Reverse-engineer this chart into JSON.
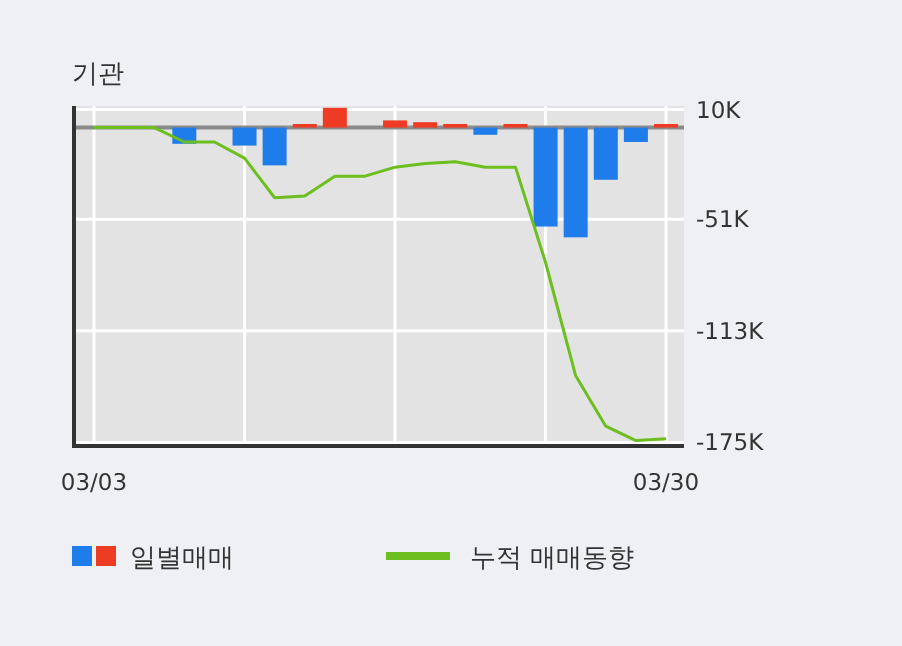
{
  "chart_data": {
    "type": "bar",
    "title": "기관",
    "categories": [
      "03/03",
      null,
      null,
      null,
      null,
      null,
      null,
      null,
      null,
      null,
      null,
      null,
      null,
      null,
      null,
      null,
      null,
      null,
      null,
      "03/30"
    ],
    "series": [
      {
        "name": "일별매매",
        "values": [
          0,
          0,
          0,
          -9,
          0,
          -10,
          -21,
          2,
          11,
          0,
          4,
          3,
          2,
          -4,
          2,
          -55,
          -61,
          -29,
          -8,
          2
        ],
        "colors": [
          "#ee3b24",
          "#ee3b24",
          "#ee3b24",
          "#1f7ceb",
          "#ee3b24",
          "#1f7ceb",
          "#1f7ceb",
          "#ee3b24",
          "#ee3b24",
          "#ee3b24",
          "#ee3b24",
          "#ee3b24",
          "#ee3b24",
          "#1f7ceb",
          "#ee3b24",
          "#1f7ceb",
          "#1f7ceb",
          "#1f7ceb",
          "#1f7ceb",
          "#ee3b24"
        ]
      },
      {
        "name": "누적 매매동향",
        "type": "line",
        "color": "#6cbf1e",
        "values": [
          0,
          0,
          0,
          -8,
          -8,
          -17,
          -39,
          -38,
          -27,
          -27,
          -22,
          -20,
          -19,
          -22,
          -22,
          -75,
          -138,
          -166,
          -174,
          -173
        ]
      }
    ],
    "ylim": [
      -177,
      12
    ],
    "yticks": [
      {
        "value": 10,
        "label": "10K"
      },
      {
        "value": -51,
        "label": "-51K"
      },
      {
        "value": -113,
        "label": "-113K"
      },
      {
        "value": -175,
        "label": "-175K"
      }
    ],
    "grid": true,
    "legend": "bottom"
  }
}
